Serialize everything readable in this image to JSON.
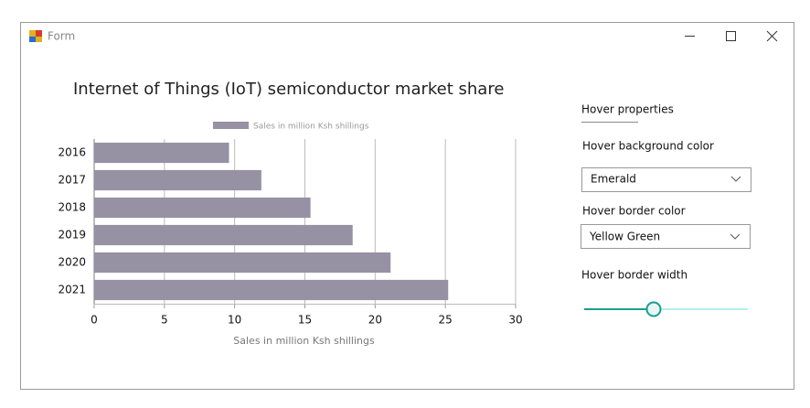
{
  "window": {
    "title": "Form"
  },
  "chart_data": {
    "type": "hbar",
    "title": "Internet of Things (IoT) semiconductor market share",
    "categories": [
      "2016",
      "2017",
      "2018",
      "2019",
      "2020",
      "2021"
    ],
    "series": [
      {
        "name": "Sales in million Ksh shillings",
        "color": "#9691a3",
        "values": [
          9.6,
          11.9,
          15.4,
          18.4,
          21.1,
          25.2
        ]
      }
    ],
    "x_label": "Sales in million Ksh shillings",
    "xlim": [
      0,
      30
    ],
    "xticks": [
      0,
      5,
      10,
      15,
      20,
      25,
      30
    ],
    "grid": true
  },
  "panel": {
    "heading": "Hover properties",
    "background_label": "Hover background color",
    "background_value": "Emerald",
    "border_label": "Hover border color",
    "border_value": "Yellow Green",
    "width_label": "Hover border width"
  }
}
